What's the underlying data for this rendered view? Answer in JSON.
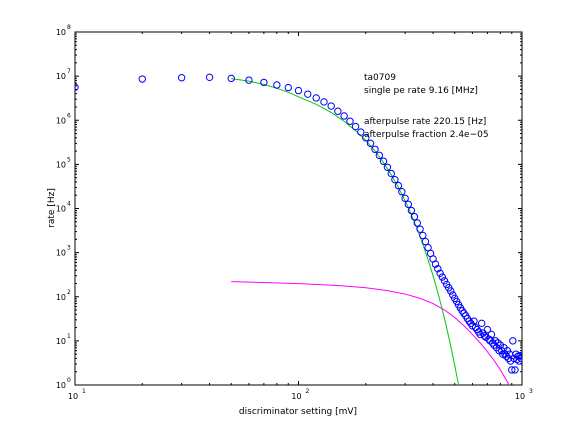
{
  "chart_data": {
    "type": "scatter",
    "xscale": "log",
    "yscale": "log",
    "xlim": [
      10,
      1000
    ],
    "ylim": [
      1,
      100000000
    ],
    "xlabel": "discriminator setting [mV]",
    "ylabel": "rate [Hz]",
    "xticks": [
      {
        "value": 10,
        "base": "10",
        "exp": "1"
      },
      {
        "value": 100,
        "base": "10",
        "exp": "2"
      },
      {
        "value": 1000,
        "base": "10",
        "exp": "3"
      }
    ],
    "yticks": [
      {
        "value": 1,
        "base": "10",
        "exp": "0"
      },
      {
        "value": 10,
        "base": "10",
        "exp": "1"
      },
      {
        "value": 100,
        "base": "10",
        "exp": "2"
      },
      {
        "value": 1000,
        "base": "10",
        "exp": "3"
      },
      {
        "value": 10000,
        "base": "10",
        "exp": "4"
      },
      {
        "value": 100000,
        "base": "10",
        "exp": "5"
      },
      {
        "value": 1000000,
        "base": "10",
        "exp": "6"
      },
      {
        "value": 10000000,
        "base": "10",
        "exp": "7"
      },
      {
        "value": 100000000,
        "base": "10",
        "exp": "8"
      }
    ],
    "annotations": [
      "ta0709",
      "single pe rate 9.16 [MHz]",
      "afterpulse rate 220.15 [Hz]",
      "afterpulse fraction 2.4e−05"
    ],
    "series": [
      {
        "kind": "markers",
        "color": "#0000ff",
        "points": [
          [
            10,
            5600000
          ],
          [
            20,
            8600000
          ],
          [
            30,
            9200000
          ],
          [
            40,
            9400000
          ],
          [
            50,
            8900000
          ],
          [
            60,
            8100000
          ],
          [
            70,
            7200000
          ],
          [
            80,
            6300000
          ],
          [
            90,
            5500000
          ],
          [
            100,
            4700000
          ],
          [
            110,
            3900000
          ],
          [
            120,
            3200000
          ],
          [
            130,
            2600000
          ],
          [
            140,
            2100000
          ],
          [
            150,
            1600000
          ],
          [
            160,
            1250000
          ],
          [
            170,
            950000
          ],
          [
            180,
            720000
          ],
          [
            190,
            540000
          ],
          [
            200,
            400000
          ],
          [
            210,
            300000
          ],
          [
            220,
            220000
          ],
          [
            230,
            160000
          ],
          [
            240,
            118000
          ],
          [
            250,
            86000
          ],
          [
            260,
            62000
          ],
          [
            270,
            45000
          ],
          [
            280,
            33000
          ],
          [
            290,
            24000
          ],
          [
            300,
            17000
          ],
          [
            310,
            12400
          ],
          [
            320,
            9000
          ],
          [
            330,
            6500
          ],
          [
            340,
            4700
          ],
          [
            350,
            3400
          ],
          [
            360,
            2450
          ],
          [
            370,
            1780
          ],
          [
            380,
            1300
          ],
          [
            390,
            960
          ],
          [
            400,
            720
          ],
          [
            410,
            550
          ],
          [
            420,
            430
          ],
          [
            430,
            340
          ],
          [
            440,
            280
          ],
          [
            450,
            230
          ],
          [
            460,
            190
          ],
          [
            470,
            160
          ],
          [
            480,
            135
          ],
          [
            490,
            110
          ],
          [
            500,
            92
          ],
          [
            510,
            78
          ],
          [
            520,
            66
          ],
          [
            530,
            56
          ],
          [
            540,
            48
          ],
          [
            550,
            42
          ],
          [
            560,
            37
          ],
          [
            570,
            32
          ],
          [
            580,
            28
          ],
          [
            590,
            25
          ],
          [
            600,
            22
          ],
          [
            610,
            28
          ],
          [
            620,
            20
          ],
          [
            630,
            18
          ],
          [
            640,
            16
          ],
          [
            650,
            14
          ],
          [
            660,
            25
          ],
          [
            670,
            15
          ],
          [
            680,
            13
          ],
          [
            690,
            12
          ],
          [
            700,
            18
          ],
          [
            710,
            11
          ],
          [
            720,
            10
          ],
          [
            730,
            14
          ],
          [
            740,
            9
          ],
          [
            750,
            8
          ],
          [
            760,
            10
          ],
          [
            770,
            7
          ],
          [
            780,
            9
          ],
          [
            790,
            6
          ],
          [
            800,
            8
          ],
          [
            810,
            6
          ],
          [
            820,
            5
          ],
          [
            830,
            7
          ],
          [
            840,
            5
          ],
          [
            850,
            4.5
          ],
          [
            860,
            6
          ],
          [
            870,
            4
          ],
          [
            880,
            5
          ],
          [
            890,
            3.5
          ],
          [
            900,
            2.2
          ],
          [
            910,
            10
          ],
          [
            920,
            4
          ],
          [
            930,
            2.2
          ],
          [
            940,
            5
          ],
          [
            950,
            3.8
          ],
          [
            960,
            4.5
          ],
          [
            970,
            3.5
          ],
          [
            980,
            4.6
          ],
          [
            990,
            4
          ],
          [
            1000,
            4.6
          ]
        ]
      },
      {
        "kind": "line",
        "color": "#00cc00",
        "points": [
          [
            50,
            8800000
          ],
          [
            60,
            7700000
          ],
          [
            70,
            6500000
          ],
          [
            80,
            5300000
          ],
          [
            90,
            4300000
          ],
          [
            100,
            3400000
          ],
          [
            120,
            2300000
          ],
          [
            140,
            1500000
          ],
          [
            160,
            950000
          ],
          [
            180,
            580000
          ],
          [
            200,
            350000
          ],
          [
            220,
            200000
          ],
          [
            240,
            110000
          ],
          [
            260,
            58000
          ],
          [
            280,
            30000
          ],
          [
            300,
            15000
          ],
          [
            320,
            7200
          ],
          [
            340,
            3400
          ],
          [
            360,
            1550
          ],
          [
            380,
            690
          ],
          [
            400,
            300
          ],
          [
            420,
            125
          ],
          [
            440,
            51
          ],
          [
            460,
            20
          ],
          [
            480,
            7.6
          ],
          [
            500,
            2.8
          ],
          [
            520,
            1.0
          ],
          [
            540,
            0.35
          ]
        ]
      },
      {
        "kind": "line",
        "color": "#ff00ff",
        "points": [
          [
            50,
            220
          ],
          [
            70,
            210
          ],
          [
            100,
            198
          ],
          [
            150,
            180
          ],
          [
            200,
            160
          ],
          [
            250,
            138
          ],
          [
            300,
            115
          ],
          [
            350,
            92
          ],
          [
            400,
            70
          ],
          [
            450,
            50
          ],
          [
            500,
            34
          ],
          [
            550,
            22
          ],
          [
            600,
            14
          ],
          [
            650,
            9
          ],
          [
            700,
            5.7
          ],
          [
            750,
            3.6
          ],
          [
            800,
            2.2
          ],
          [
            850,
            1.3
          ],
          [
            900,
            0.8
          ]
        ]
      }
    ]
  }
}
